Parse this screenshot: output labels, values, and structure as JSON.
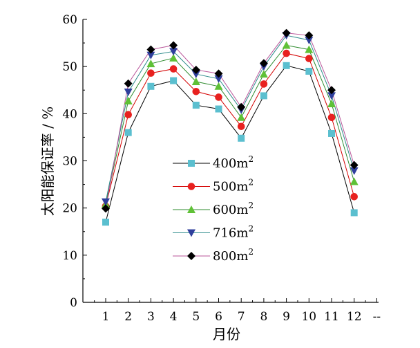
{
  "chart_data": {
    "type": "line",
    "title": "",
    "xlabel": "月份",
    "ylabel": "太阳能保证率 / %",
    "ylim": [
      0,
      60
    ],
    "yticks": [
      "0",
      "10",
      "20",
      "30",
      "40",
      "50",
      "60"
    ],
    "categories": [
      "1",
      "2",
      "3",
      "4",
      "5",
      "6",
      "7",
      "8",
      "9",
      "10",
      "11",
      "12"
    ],
    "x_extra_tick": "--",
    "grid": false,
    "legend_position": "center",
    "series": [
      {
        "name": "400m",
        "name_sup": "2",
        "color": "#000000",
        "marker_color": "#5bbfcf",
        "marker": "square",
        "values": [
          17.0,
          36.0,
          45.8,
          47.0,
          41.8,
          41.0,
          34.8,
          43.8,
          50.2,
          49.0,
          35.8,
          19.0
        ]
      },
      {
        "name": "500m",
        "name_sup": "2",
        "color": "#d40000",
        "marker_color": "#e8211f",
        "marker": "circle",
        "values": [
          20.4,
          39.8,
          48.6,
          49.5,
          44.7,
          43.5,
          37.3,
          46.3,
          52.8,
          51.7,
          39.2,
          22.4
        ]
      },
      {
        "name": "600m",
        "name_sup": "2",
        "color": "#2e8b2e",
        "marker_color": "#5fc136",
        "marker": "triangle-up",
        "values": [
          20.8,
          42.7,
          50.6,
          51.8,
          46.8,
          45.8,
          39.2,
          48.4,
          54.5,
          53.6,
          42.1,
          25.6
        ]
      },
      {
        "name": "716m",
        "name_sup": "2",
        "color": "#2b8a8a",
        "marker_color": "#2f3f9c",
        "marker": "triangle-down",
        "values": [
          21.3,
          44.6,
          52.4,
          53.2,
          48.4,
          47.4,
          40.8,
          50.0,
          56.6,
          55.6,
          43.8,
          27.9
        ]
      },
      {
        "name": "800m",
        "name_sup": "2",
        "color": "#b9559a",
        "marker_color": "#000000",
        "marker": "diamond",
        "values": [
          19.9,
          46.4,
          53.6,
          54.5,
          49.3,
          48.5,
          41.4,
          50.7,
          57.1,
          56.6,
          45.0,
          29.1
        ]
      }
    ]
  }
}
